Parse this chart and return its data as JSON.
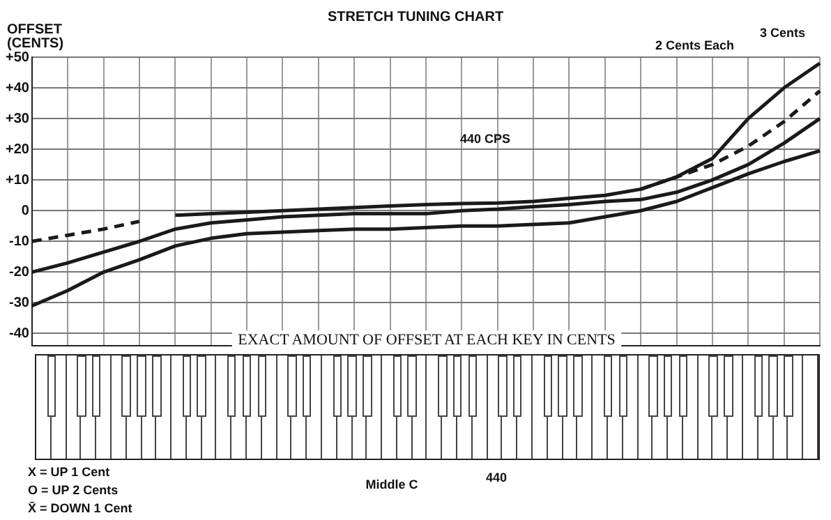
{
  "chart_data": {
    "type": "line",
    "title": "STRETCH TUNING CHART",
    "ylabel": "OFFSET (CENTS)",
    "categories": [
      null,
      null,
      null,
      null,
      null,
      null,
      null,
      null,
      null,
      null,
      null,
      null,
      null,
      null,
      null,
      null,
      null,
      null,
      null,
      null,
      null,
      null,
      null
    ],
    "series": [
      {
        "color": "#1a1a1a",
        "values": [
          null,
          null,
          null,
          null,
          -1.5,
          -1,
          -0.5,
          0,
          0.5,
          1,
          1.5,
          2,
          2.3,
          2.5,
          3,
          4,
          5,
          7,
          11,
          17,
          30,
          40,
          48
        ]
      },
      {
        "color": "#1a1a1a",
        "line_style": "dashed",
        "values": [
          -10,
          -8,
          -6,
          -3.5,
          null,
          null,
          null,
          null,
          null,
          null,
          null,
          null,
          null,
          null,
          null,
          null,
          null,
          7,
          11,
          15,
          21,
          29,
          39
        ]
      },
      {
        "color": "#1a1a1a",
        "values": [
          -20,
          -17,
          -13.5,
          -10,
          -6,
          -4,
          -3,
          -2,
          -1.5,
          -1,
          -1,
          -1,
          0,
          0.5,
          1.3,
          2,
          3,
          3.6,
          6,
          10,
          15,
          22,
          30
        ]
      },
      {
        "color": "#1a1a1a",
        "values": [
          -31,
          -26,
          -20,
          -16,
          -11.5,
          -9,
          -7.5,
          -7,
          -6.5,
          -6,
          -6,
          -5.5,
          -5,
          -5,
          -4.5,
          -4,
          -2,
          0,
          3,
          7.5,
          12,
          16,
          19.5
        ]
      }
    ],
    "ylim": [
      -44,
      50
    ],
    "yticks": [
      -40,
      -30,
      -20,
      -10,
      0,
      {
        "value": 10,
        "label": "+10"
      },
      {
        "value": 20,
        "label": "+20"
      },
      {
        "value": 30,
        "label": "+30"
      },
      {
        "value": 40,
        "label": "+40"
      },
      {
        "value": 50,
        "label": "+50"
      }
    ],
    "grid": true,
    "marker": "none",
    "tick_labels": "y",
    "annotations": [
      "440 CPS",
      "2 Cents Each",
      "3 Cents",
      "EXACT AMOUNT OF OFFSET AT EACH KEY IN CENTS",
      "X = UP 1 Cent",
      "O = UP 2 Cents",
      "X̄ = DOWN 1 Cent",
      "Middle C",
      "440"
    ]
  }
}
